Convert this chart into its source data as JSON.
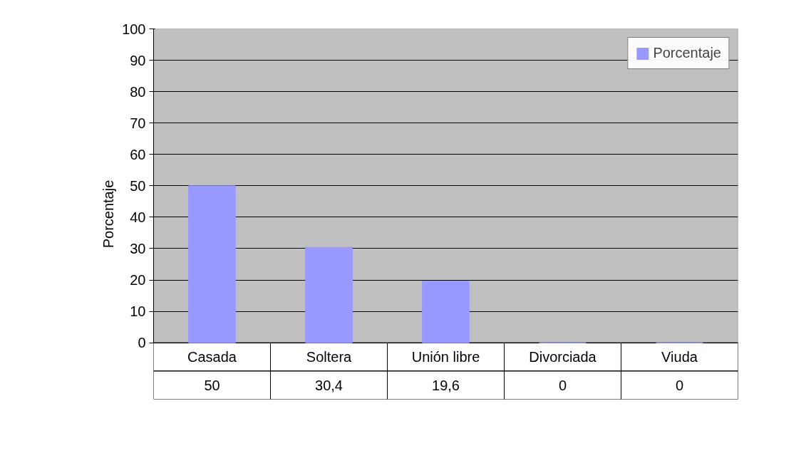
{
  "chart_data": {
    "type": "bar",
    "ylabel": "Porcentaje",
    "categories": [
      "Casada",
      "Soltera",
      "Unión libre",
      "Divorciada",
      "Viuda"
    ],
    "series": [
      {
        "name": "Porcentaje",
        "color": "#9999ff",
        "values": [
          50,
          30.4,
          19.6,
          0,
          0
        ]
      }
    ],
    "ylim": [
      0,
      100
    ],
    "yticks": [
      0,
      10,
      20,
      30,
      40,
      50,
      60,
      70,
      80,
      90,
      100
    ],
    "value_labels": [
      "50",
      "30,4",
      "19,6",
      "0",
      "0"
    ],
    "grid": "y",
    "legend": "top right"
  }
}
